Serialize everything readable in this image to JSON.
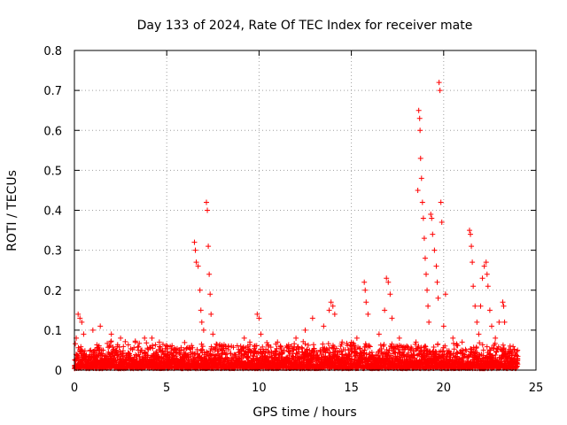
{
  "chart_data": {
    "type": "scatter",
    "title": "Day 133 of 2024, Rate Of TEC Index for receiver mate",
    "xlabel": "GPS time / hours",
    "ylabel": "ROTI / TECUs",
    "xlim": [
      0,
      25
    ],
    "ylim": [
      0,
      0.8
    ],
    "xticks": [
      0,
      5,
      10,
      15,
      20,
      25
    ],
    "yticks": [
      0,
      0.1,
      0.2,
      0.3,
      0.4,
      0.5,
      0.6,
      0.7,
      0.8
    ],
    "xtick_labels": [
      "0",
      "5",
      "10",
      "15",
      "20",
      "25"
    ],
    "ytick_labels": [
      "0",
      "0.1",
      "0.2",
      "0.3",
      "0.4",
      "0.5",
      "0.6",
      "0.7",
      "0.8"
    ],
    "grid": true,
    "marker": "+",
    "color": "#ff0000",
    "series": [
      {
        "name": "ROTI",
        "background_band": {
          "x_range": [
            0,
            24
          ],
          "typical_max": 0.05
        },
        "points": [
          [
            0.2,
            0.14
          ],
          [
            0.3,
            0.13
          ],
          [
            0.4,
            0.12
          ],
          [
            0.5,
            0.09
          ],
          [
            0.1,
            0.08
          ],
          [
            1.0,
            0.1
          ],
          [
            1.4,
            0.11
          ],
          [
            2.0,
            0.09
          ],
          [
            2.5,
            0.08
          ],
          [
            3.3,
            0.07
          ],
          [
            3.8,
            0.08
          ],
          [
            4.2,
            0.08
          ],
          [
            4.6,
            0.07
          ],
          [
            5.0,
            0.06
          ],
          [
            5.5,
            0.05
          ],
          [
            6.5,
            0.32
          ],
          [
            6.55,
            0.3
          ],
          [
            6.6,
            0.27
          ],
          [
            6.7,
            0.26
          ],
          [
            6.8,
            0.2
          ],
          [
            6.85,
            0.15
          ],
          [
            6.9,
            0.12
          ],
          [
            7.0,
            0.1
          ],
          [
            7.15,
            0.42
          ],
          [
            7.2,
            0.4
          ],
          [
            7.25,
            0.31
          ],
          [
            7.3,
            0.24
          ],
          [
            7.35,
            0.19
          ],
          [
            7.4,
            0.14
          ],
          [
            7.5,
            0.09
          ],
          [
            8.0,
            0.05
          ],
          [
            8.5,
            0.06
          ],
          [
            9.2,
            0.08
          ],
          [
            9.5,
            0.07
          ],
          [
            9.9,
            0.14
          ],
          [
            10.0,
            0.13
          ],
          [
            10.1,
            0.09
          ],
          [
            10.5,
            0.06
          ],
          [
            11.0,
            0.07
          ],
          [
            11.5,
            0.06
          ],
          [
            12.0,
            0.08
          ],
          [
            12.5,
            0.1
          ],
          [
            12.9,
            0.13
          ],
          [
            13.5,
            0.11
          ],
          [
            13.8,
            0.15
          ],
          [
            13.9,
            0.17
          ],
          [
            14.0,
            0.16
          ],
          [
            14.1,
            0.14
          ],
          [
            14.5,
            0.07
          ],
          [
            15.0,
            0.06
          ],
          [
            15.3,
            0.08
          ],
          [
            15.7,
            0.22
          ],
          [
            15.75,
            0.2
          ],
          [
            15.8,
            0.17
          ],
          [
            15.9,
            0.14
          ],
          [
            16.5,
            0.09
          ],
          [
            16.8,
            0.15
          ],
          [
            16.9,
            0.23
          ],
          [
            17.0,
            0.22
          ],
          [
            17.1,
            0.19
          ],
          [
            17.2,
            0.13
          ],
          [
            17.6,
            0.08
          ],
          [
            18.0,
            0.06
          ],
          [
            18.5,
            0.07
          ],
          [
            18.6,
            0.45
          ],
          [
            18.65,
            0.65
          ],
          [
            18.7,
            0.63
          ],
          [
            18.72,
            0.6
          ],
          [
            18.75,
            0.53
          ],
          [
            18.8,
            0.48
          ],
          [
            18.85,
            0.42
          ],
          [
            18.9,
            0.38
          ],
          [
            18.95,
            0.33
          ],
          [
            19.0,
            0.28
          ],
          [
            19.05,
            0.24
          ],
          [
            19.1,
            0.2
          ],
          [
            19.15,
            0.16
          ],
          [
            19.2,
            0.12
          ],
          [
            19.3,
            0.39
          ],
          [
            19.35,
            0.38
          ],
          [
            19.4,
            0.34
          ],
          [
            19.5,
            0.3
          ],
          [
            19.6,
            0.26
          ],
          [
            19.65,
            0.22
          ],
          [
            19.7,
            0.18
          ],
          [
            19.75,
            0.72
          ],
          [
            19.8,
            0.7
          ],
          [
            19.85,
            0.42
          ],
          [
            19.9,
            0.37
          ],
          [
            20.0,
            0.11
          ],
          [
            20.1,
            0.19
          ],
          [
            20.5,
            0.08
          ],
          [
            21.0,
            0.07
          ],
          [
            21.4,
            0.35
          ],
          [
            21.45,
            0.34
          ],
          [
            21.5,
            0.31
          ],
          [
            21.55,
            0.27
          ],
          [
            21.6,
            0.21
          ],
          [
            21.7,
            0.16
          ],
          [
            21.8,
            0.12
          ],
          [
            21.9,
            0.09
          ],
          [
            22.0,
            0.16
          ],
          [
            22.1,
            0.23
          ],
          [
            22.2,
            0.26
          ],
          [
            22.3,
            0.27
          ],
          [
            22.35,
            0.24
          ],
          [
            22.4,
            0.21
          ],
          [
            22.5,
            0.15
          ],
          [
            22.6,
            0.11
          ],
          [
            22.8,
            0.08
          ],
          [
            23.0,
            0.12
          ],
          [
            23.2,
            0.17
          ],
          [
            23.25,
            0.16
          ],
          [
            23.3,
            0.12
          ],
          [
            23.6,
            0.06
          ],
          [
            23.9,
            0.04
          ],
          [
            24.0,
            0.05
          ]
        ]
      }
    ]
  }
}
